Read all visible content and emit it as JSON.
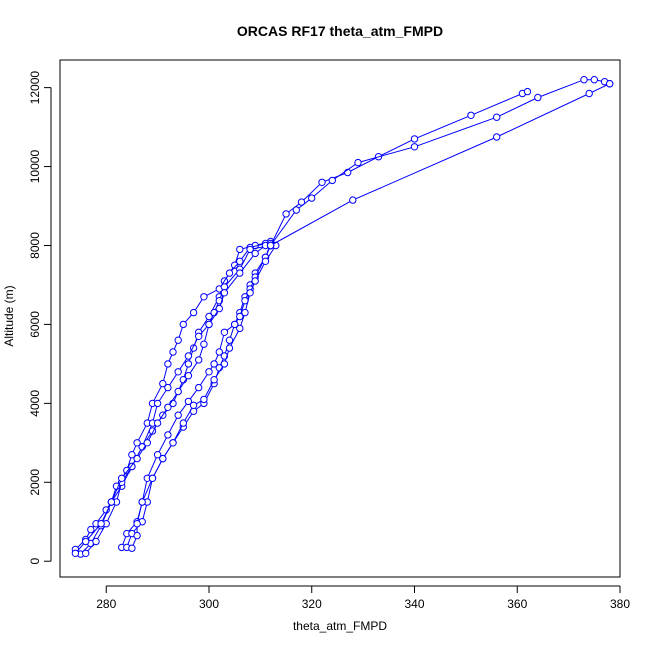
{
  "chart_data": {
    "type": "scatter",
    "title": "ORCAS RF17 theta_atm_FMPD",
    "xlabel": "theta_atm_FMPD",
    "ylabel": "Altitude (m)",
    "xlim": [
      271,
      380
    ],
    "ylim": [
      -400,
      12700
    ],
    "xticks": [
      280,
      300,
      320,
      340,
      360,
      380
    ],
    "yticks": [
      0,
      2000,
      4000,
      6000,
      8000,
      10000,
      12000
    ],
    "marker": "open-circle",
    "line_color": "#0000ff",
    "grid": false,
    "series": [
      {
        "points": [
          [
            274,
            300
          ],
          [
            276,
            550
          ],
          [
            277,
            800
          ],
          [
            278,
            950
          ],
          [
            280,
            1300
          ],
          [
            281,
            1500
          ],
          [
            283,
            1900
          ],
          [
            285,
            2400
          ],
          [
            287,
            2900
          ],
          [
            289,
            3300
          ],
          [
            291,
            3700
          ],
          [
            293,
            4000
          ],
          [
            295,
            4600
          ],
          [
            296,
            5000
          ],
          [
            297,
            5400
          ],
          [
            298,
            5800
          ],
          [
            300,
            6200
          ],
          [
            302,
            6700
          ],
          [
            303,
            7100
          ],
          [
            305,
            7500
          ],
          [
            306,
            7900
          ],
          [
            309,
            8000
          ],
          [
            312,
            8100
          ]
        ]
      },
      {
        "points": [
          [
            275,
            180
          ],
          [
            277,
            450
          ],
          [
            279,
            900
          ],
          [
            281,
            1500
          ],
          [
            282,
            1900
          ],
          [
            284,
            2300
          ],
          [
            285,
            2700
          ],
          [
            286,
            3000
          ],
          [
            288,
            3500
          ],
          [
            289,
            4000
          ],
          [
            291,
            4500
          ],
          [
            292,
            5000
          ],
          [
            293,
            5300
          ],
          [
            294,
            5600
          ],
          [
            295,
            6000
          ],
          [
            297,
            6300
          ],
          [
            299,
            6700
          ],
          [
            302,
            6900
          ],
          [
            304,
            7300
          ],
          [
            306,
            7600
          ],
          [
            308,
            7950
          ],
          [
            311,
            8050
          ]
        ]
      },
      {
        "points": [
          [
            276,
            200
          ],
          [
            278,
            500
          ],
          [
            280,
            950
          ],
          [
            282,
            1500
          ],
          [
            283,
            2000
          ],
          [
            285,
            2400
          ],
          [
            287,
            2900
          ],
          [
            289,
            3500
          ],
          [
            290,
            4000
          ],
          [
            292,
            4400
          ],
          [
            294,
            4800
          ],
          [
            296,
            5200
          ],
          [
            298,
            5700
          ],
          [
            300,
            6000
          ],
          [
            301,
            6300
          ],
          [
            302,
            6600
          ],
          [
            303,
            6950
          ],
          [
            306,
            7400
          ],
          [
            308,
            7900
          ],
          [
            312,
            8000
          ]
        ]
      },
      {
        "points": [
          [
            274,
            200
          ],
          [
            276,
            500
          ],
          [
            279,
            950
          ],
          [
            281,
            1500
          ],
          [
            283,
            2100
          ],
          [
            286,
            2600
          ],
          [
            288,
            3000
          ],
          [
            290,
            3500
          ],
          [
            292,
            3900
          ],
          [
            294,
            4300
          ],
          [
            296,
            4700
          ],
          [
            298,
            5100
          ],
          [
            299,
            5500
          ],
          [
            300,
            6000
          ],
          [
            302,
            6400
          ],
          [
            303,
            6800
          ],
          [
            306,
            7300
          ],
          [
            309,
            7800
          ],
          [
            311,
            8000
          ]
        ]
      },
      {
        "points": [
          [
            283,
            350
          ],
          [
            284,
            700
          ],
          [
            286,
            1000
          ],
          [
            287,
            1500
          ],
          [
            288,
            2100
          ],
          [
            290,
            2700
          ],
          [
            292,
            3200
          ],
          [
            294,
            3700
          ],
          [
            296,
            4050
          ],
          [
            298,
            4400
          ],
          [
            300,
            4800
          ],
          [
            301,
            5000
          ],
          [
            302,
            5300
          ],
          [
            303,
            5800
          ],
          [
            305,
            6000
          ],
          [
            306,
            6300
          ],
          [
            307,
            6700
          ],
          [
            308,
            7000
          ],
          [
            309,
            7300
          ],
          [
            311,
            7700
          ],
          [
            312,
            8050
          ]
        ]
      },
      {
        "points": [
          [
            284,
            350
          ],
          [
            285,
            700
          ],
          [
            287,
            1000
          ],
          [
            288,
            1500
          ],
          [
            289,
            2100
          ],
          [
            291,
            2600
          ],
          [
            293,
            3000
          ],
          [
            295,
            3400
          ],
          [
            297,
            3800
          ],
          [
            299,
            4000
          ],
          [
            301,
            4500
          ],
          [
            302,
            4900
          ],
          [
            303,
            5200
          ],
          [
            304,
            5600
          ],
          [
            305,
            6000
          ],
          [
            306,
            6200
          ],
          [
            307,
            6600
          ],
          [
            308,
            6900
          ],
          [
            309,
            7200
          ],
          [
            311,
            7700
          ],
          [
            312,
            8000
          ]
        ]
      },
      {
        "points": [
          [
            285,
            330
          ],
          [
            286,
            650
          ],
          [
            286,
            950
          ],
          [
            287,
            1500
          ],
          [
            289,
            2100
          ],
          [
            291,
            2600
          ],
          [
            293,
            3000
          ],
          [
            295,
            3500
          ],
          [
            297,
            3950
          ],
          [
            299,
            4100
          ],
          [
            301,
            4600
          ],
          [
            303,
            5000
          ],
          [
            304,
            5400
          ],
          [
            306,
            5900
          ],
          [
            307,
            6300
          ],
          [
            308,
            6800
          ],
          [
            309,
            7100
          ],
          [
            311,
            7600
          ],
          [
            313,
            8000
          ]
        ]
      },
      {
        "points": [
          [
            312,
            8000
          ],
          [
            315,
            8800
          ],
          [
            318,
            9100
          ],
          [
            322,
            9600
          ],
          [
            327,
            9850
          ],
          [
            333,
            10250
          ],
          [
            340,
            10700
          ],
          [
            351,
            11300
          ],
          [
            361,
            11850
          ],
          [
            362,
            11900
          ]
        ]
      },
      {
        "points": [
          [
            312,
            8000
          ],
          [
            317,
            8900
          ],
          [
            320,
            9200
          ],
          [
            324,
            9650
          ],
          [
            329,
            10100
          ],
          [
            340,
            10500
          ],
          [
            356,
            11250
          ],
          [
            364,
            11750
          ],
          [
            373,
            12200
          ],
          [
            375,
            12200
          ],
          [
            377,
            12150
          ],
          [
            378,
            12100
          ]
        ]
      },
      {
        "points": [
          [
            312,
            8000
          ],
          [
            328,
            9150
          ],
          [
            356,
            10750
          ],
          [
            374,
            11850
          ],
          [
            378,
            12100
          ]
        ]
      }
    ]
  }
}
